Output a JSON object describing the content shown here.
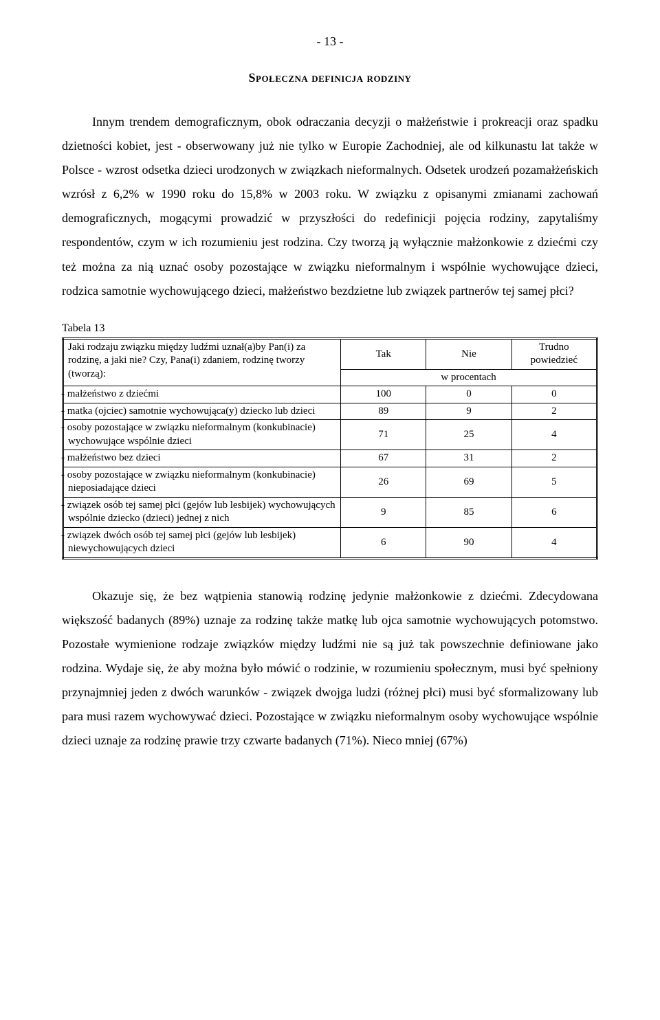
{
  "page_number": "- 13 -",
  "heading": "Społeczna definicja rodziny",
  "paragraph1": "Innym trendem demograficznym, obok odraczania decyzji o małżeństwie i prokreacji oraz spadku dzietności kobiet, jest - obserwowany już nie tylko w Europie Zachodniej, ale od kilkunastu lat także w Polsce - wzrost odsetka dzieci urodzonych w związkach nieformalnych. Odsetek urodzeń pozamałżeńskich wzrósł z 6,2% w 1990 roku do 15,8% w 2003 roku. W związku z opisanymi zmianami zachowań demograficznych, mogącymi prowadzić w przyszłości do redefinicji pojęcia rodziny, zapytaliśmy respondentów, czym w ich rozumieniu jest rodzina. Czy tworzą ją wyłącznie małżonkowie z dziećmi czy też można za nią uznać osoby pozostające w związku nieformalnym i wspólnie wychowujące dzieci, rodzica samotnie wychowującego dzieci, małżeństwo bezdzietne lub związek partnerów tej samej płci?",
  "table": {
    "caption": "Tabela 13",
    "question": "Jaki rodzaju związku między ludźmi uznał(a)by Pan(i) za rodzinę, a jaki nie? Czy, Pana(i) zdaniem, rodzinę tworzy (tworzą):",
    "col_width_label": "52%",
    "col_width_num": "16%",
    "headers": {
      "yes": "Tak",
      "no": "Nie",
      "dk": "Trudno powiedzieć"
    },
    "subheader": "w procentach",
    "rows": [
      {
        "label": "- małżeństwo z dziećmi",
        "yes": "100",
        "no": "0",
        "dk": "0"
      },
      {
        "label": "- matka (ojciec) samotnie wychowująca(y) dziecko lub dzieci",
        "yes": "89",
        "no": "9",
        "dk": "2"
      },
      {
        "label": "- osoby pozostające w związku nieformalnym (konkubinacie) wychowujące wspólnie dzieci",
        "yes": "71",
        "no": "25",
        "dk": "4"
      },
      {
        "label": "- małżeństwo bez dzieci",
        "yes": "67",
        "no": "31",
        "dk": "2"
      },
      {
        "label": "- osoby pozostające w związku nieformalnym (konkubinacie) nieposiadające dzieci",
        "yes": "26",
        "no": "69",
        "dk": "5"
      },
      {
        "label": "- związek osób tej samej płci (gejów lub lesbijek) wychowujących wspólnie dziecko (dzieci) jednej z nich",
        "yes": "9",
        "no": "85",
        "dk": "6"
      },
      {
        "label": "- związek dwóch osób tej samej płci (gejów lub lesbijek) niewychowujących dzieci",
        "yes": "6",
        "no": "90",
        "dk": "4"
      }
    ]
  },
  "paragraph2": "Okazuje się, że bez wątpienia stanowią rodzinę jedynie małżonkowie z dziećmi. Zdecydowana większość badanych (89%) uznaje za rodzinę także matkę lub ojca samotnie wychowujących potomstwo. Pozostałe wymienione rodzaje związków między ludźmi nie są już tak powszechnie definiowane jako rodzina. Wydaje się, że aby można było mówić o rodzinie, w rozumieniu społecznym, musi być spełniony przynajmniej jeden z dwóch warunków - związek dwojga ludzi (różnej płci) musi być sformalizowany lub para musi razem wychowywać dzieci. Pozostające w związku nieformalnym osoby wychowujące wspólnie dzieci uznaje za rodzinę prawie trzy czwarte badanych (71%). Nieco mniej (67%)"
}
